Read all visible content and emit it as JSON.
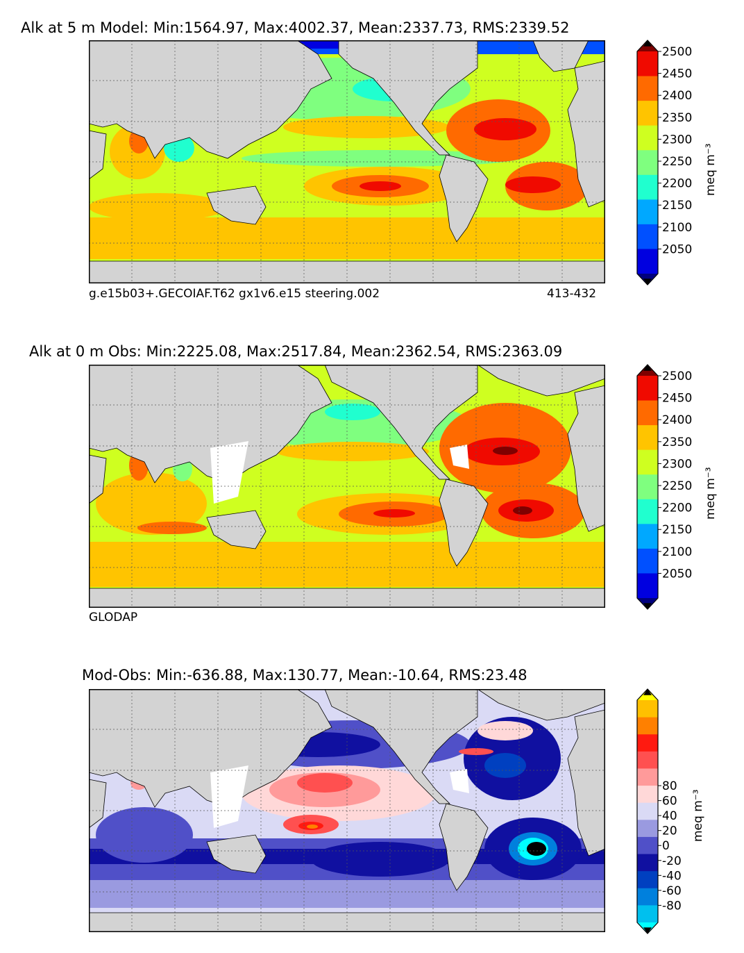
{
  "panels": [
    {
      "title": "Alk at 5 m Model: Min:1564.97, Max:4002.37, Mean:2337.73, RMS:2339.52",
      "footer_left": "g.e15b03+.GECOIAF.T62 gx1v6.e15 steering.002",
      "footer_right": "413-432",
      "colorbar_ticks": [
        "2050",
        "2100",
        "2150",
        "2200",
        "2250",
        "2300",
        "2350",
        "2400",
        "2450",
        "2500"
      ],
      "colorbar_unit": "meq m⁻³"
    },
    {
      "title": "Alk at 0 m Obs: Min:2225.08, Max:2517.84, Mean:2362.54, RMS:2363.09",
      "footer_left": "GLODAP",
      "footer_right": "",
      "colorbar_ticks": [
        "2050",
        "2100",
        "2150",
        "2200",
        "2250",
        "2300",
        "2350",
        "2400",
        "2450",
        "2500"
      ],
      "colorbar_unit": "meq m⁻³"
    },
    {
      "title": "Mod-Obs: Min:-636.88, Max:130.77, Mean:-10.64, RMS:23.48",
      "footer_left": "",
      "footer_right": "",
      "colorbar_ticks": [
        "-80",
        "-60",
        "-40",
        "-20",
        "0",
        "20",
        "40",
        "60",
        "80"
      ],
      "colorbar_unit": "meq m⁻³"
    }
  ],
  "colors": {
    "abs_scale": [
      "#00007f",
      "#0000e0",
      "#0050ff",
      "#00a8ff",
      "#20ffcf",
      "#7fff7f",
      "#cfff20",
      "#ffc400",
      "#ff6a00",
      "#f00a00",
      "#7f0000"
    ],
    "diff_scale": [
      "#00ffff",
      "#00c0ee",
      "#0080dd",
      "#0040c0",
      "#1010a0",
      "#5050c8",
      "#9a9ae0",
      "#dadaf5",
      "#ffd8d8",
      "#ff9a9a",
      "#ff5050",
      "#ff1a10",
      "#ff8000",
      "#ffc000",
      "#ffff00"
    ],
    "land": "#d3d3d3"
  },
  "chart_data": [
    {
      "type": "heatmap",
      "title": "Alk at 5 m Model: Min:1564.97, Max:4002.37, Mean:2337.73, RMS:2339.52",
      "colorbar_label": "meq m⁻³",
      "colorbar_range": [
        2000,
        2550
      ],
      "colorbar_ticks": [
        2050,
        2100,
        2150,
        2200,
        2250,
        2300,
        2350,
        2400,
        2450,
        2500
      ],
      "stats": {
        "min": 1564.97,
        "max": 4002.37,
        "mean": 2337.73,
        "rms": 2339.52
      }
    },
    {
      "type": "heatmap",
      "title": "Alk at 0 m Obs: Min:2225.08, Max:2517.84, Mean:2362.54, RMS:2363.09",
      "colorbar_label": "meq m⁻³",
      "colorbar_range": [
        2000,
        2550
      ],
      "colorbar_ticks": [
        2050,
        2100,
        2150,
        2200,
        2250,
        2300,
        2350,
        2400,
        2450,
        2500
      ],
      "stats": {
        "min": 2225.08,
        "max": 2517.84,
        "mean": 2362.54,
        "rms": 2363.09
      }
    },
    {
      "type": "heatmap",
      "title": "Mod-Obs: Min:-636.88, Max:130.77, Mean:-10.64, RMS:23.48",
      "colorbar_label": "meq m⁻³",
      "colorbar_range": [
        -90,
        90
      ],
      "colorbar_ticks": [
        -80,
        -60,
        -40,
        -20,
        0,
        20,
        40,
        60,
        80
      ],
      "stats": {
        "min": -636.88,
        "max": 130.77,
        "mean": -10.64,
        "rms": 23.48
      }
    }
  ]
}
